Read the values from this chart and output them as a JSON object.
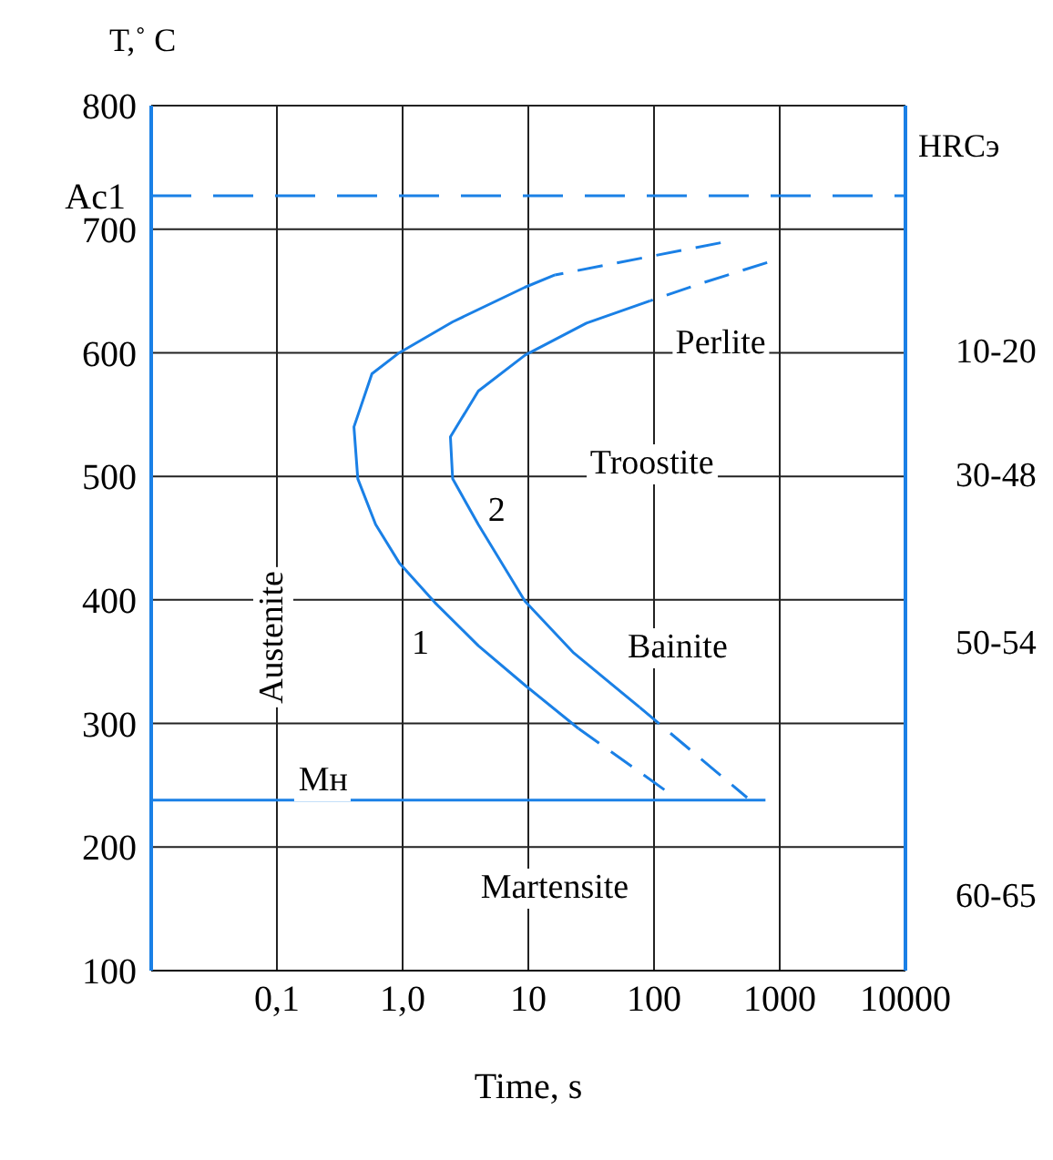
{
  "chart_data": {
    "type": "line",
    "xlabel": "Time, s",
    "ylabel": "T,˚ C",
    "y2label": "HRCэ",
    "log": "x",
    "grid": true,
    "xlim": [
      0.01,
      10000
    ],
    "xticks": [
      {
        "value": 0.1,
        "label": "0,1"
      },
      {
        "value": 1,
        "label": "1,0"
      },
      10,
      100,
      1000,
      10000
    ],
    "ylim": [
      100,
      800
    ],
    "yticks": [
      100,
      200,
      300,
      400,
      500,
      600,
      700,
      800
    ],
    "ref_lines": [
      {
        "axis": "y",
        "value": 727,
        "label": "Ac1",
        "color": "#1a80e6",
        "line_style": "dashed"
      }
    ],
    "series": [
      {
        "color": "#1a80e6",
        "line_style": "solid",
        "x": [
          16.3,
          9.4,
          2.5,
          0.94,
          0.57,
          0.41,
          0.44,
          0.61,
          0.94,
          1.8,
          4.0,
          9.4,
          25
        ],
        "values": [
          663,
          653,
          625,
          600,
          583,
          540,
          498,
          461,
          430,
          398,
          363,
          331,
          296
        ]
      },
      {
        "color": "#1a80e6",
        "line_style": "dashed",
        "x": [
          339,
          16.3
        ],
        "values": [
          689,
          663
        ]
      },
      {
        "color": "#1a80e6",
        "line_style": "dashed",
        "x": [
          25,
          148
        ],
        "values": [
          296,
          240
        ]
      },
      {
        "color": "#1a80e6",
        "line_style": "solid",
        "x": [
          93,
          29,
          9.4,
          4.0,
          2.4,
          2.5,
          4.0,
          9.4,
          23,
          77
        ],
        "values": [
          642,
          624,
          598,
          569,
          532,
          498,
          461,
          399,
          357,
          313
        ]
      },
      {
        "color": "#1a80e6",
        "line_style": "dashed",
        "x": [
          794,
          251,
          93
        ],
        "values": [
          673,
          657,
          642
        ]
      },
      {
        "color": "#1a80e6",
        "line_style": "dashed",
        "x": [
          77,
          550
        ],
        "values": [
          313,
          240
        ]
      },
      {
        "color": "#1a80e6",
        "line_style": "solid",
        "x": [
          0.01,
          770
        ],
        "values": [
          238,
          238
        ]
      }
    ],
    "annotations": [
      "10-20",
      "30-48",
      "50-54",
      "60-65",
      "Perlite",
      "Troostite",
      "Bainite",
      "Martensite",
      "Austenite",
      "1",
      "2",
      "Mн"
    ]
  }
}
